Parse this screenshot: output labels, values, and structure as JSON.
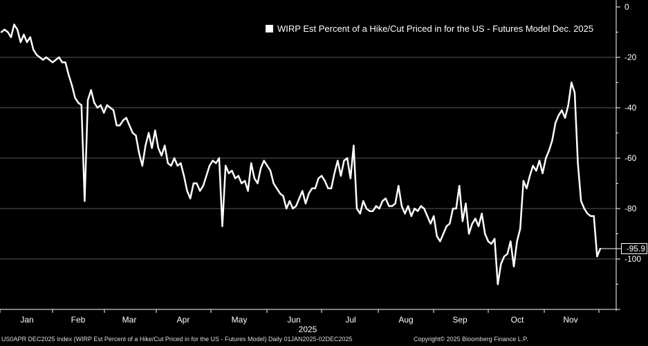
{
  "chart_data": {
    "type": "line",
    "title": "",
    "legend_position": "top-right",
    "xlabel": "2025",
    "ylabel": "",
    "ylim": [
      -120,
      0
    ],
    "y_ticks": [
      0,
      -20,
      -40,
      -60,
      -80,
      -100
    ],
    "grid": true,
    "months": [
      "Jan",
      "Feb",
      "Mar",
      "Apr",
      "May",
      "Jun",
      "Jul",
      "Aug",
      "Sep",
      "Oct",
      "Nov"
    ],
    "series": [
      {
        "name": "WIRP Est Percent of a Hike/Cut Priced in for the US - Futures Model Dec. 2025",
        "color": "#ffffff",
        "last_value_label": "-95.9",
        "points": [
          [
            0,
            -10
          ],
          [
            1,
            -9
          ],
          [
            2,
            -10
          ],
          [
            3,
            -12
          ],
          [
            4,
            -7
          ],
          [
            5,
            -9
          ],
          [
            6,
            -14
          ],
          [
            7,
            -11
          ],
          [
            8,
            -14
          ],
          [
            9,
            -12
          ],
          [
            10,
            -17
          ],
          [
            11,
            -19
          ],
          [
            12,
            -20
          ],
          [
            13,
            -21
          ],
          [
            14,
            -20
          ],
          [
            15,
            -21
          ],
          [
            16,
            -22
          ],
          [
            17,
            -21
          ],
          [
            18,
            -20
          ],
          [
            19,
            -22
          ],
          [
            20,
            -22
          ],
          [
            21,
            -27
          ],
          [
            22,
            -31
          ],
          [
            23,
            -36
          ],
          [
            24,
            -38
          ],
          [
            25,
            -39
          ],
          [
            26,
            -77
          ],
          [
            27,
            -37
          ],
          [
            28,
            -33
          ],
          [
            29,
            -38
          ],
          [
            30,
            -40
          ],
          [
            31,
            -39
          ],
          [
            32,
            -42
          ],
          [
            33,
            -39
          ],
          [
            34,
            -40
          ],
          [
            35,
            -41
          ],
          [
            36,
            -47
          ],
          [
            37,
            -47
          ],
          [
            38,
            -45
          ],
          [
            39,
            -44
          ],
          [
            40,
            -47
          ],
          [
            41,
            -50
          ],
          [
            42,
            -51
          ],
          [
            43,
            -58
          ],
          [
            44,
            -63
          ],
          [
            45,
            -55
          ],
          [
            46,
            -50
          ],
          [
            47,
            -56
          ],
          [
            48,
            -49
          ],
          [
            49,
            -56
          ],
          [
            50,
            -59
          ],
          [
            51,
            -55
          ],
          [
            52,
            -62
          ],
          [
            53,
            -63
          ],
          [
            54,
            -60
          ],
          [
            55,
            -63
          ],
          [
            56,
            -62
          ],
          [
            57,
            -67
          ],
          [
            58,
            -73
          ],
          [
            59,
            -76
          ],
          [
            60,
            -70
          ],
          [
            61,
            -70
          ],
          [
            62,
            -73
          ],
          [
            63,
            -71
          ],
          [
            64,
            -67
          ],
          [
            65,
            -63
          ],
          [
            66,
            -61
          ],
          [
            67,
            -62
          ],
          [
            68,
            -60
          ],
          [
            69,
            -87
          ],
          [
            70,
            -63
          ],
          [
            71,
            -66
          ],
          [
            72,
            -65
          ],
          [
            73,
            -68
          ],
          [
            74,
            -67
          ],
          [
            75,
            -70
          ],
          [
            76,
            -69
          ],
          [
            77,
            -73
          ],
          [
            78,
            -62
          ],
          [
            79,
            -68
          ],
          [
            80,
            -70
          ],
          [
            81,
            -64
          ],
          [
            82,
            -61
          ],
          [
            83,
            -63
          ],
          [
            84,
            -65
          ],
          [
            85,
            -70
          ],
          [
            86,
            -72
          ],
          [
            87,
            -74
          ],
          [
            88,
            -75
          ],
          [
            89,
            -80
          ],
          [
            90,
            -77
          ],
          [
            91,
            -80
          ],
          [
            92,
            -79
          ],
          [
            93,
            -76
          ],
          [
            94,
            -73
          ],
          [
            95,
            -78
          ],
          [
            96,
            -74
          ],
          [
            97,
            -72
          ],
          [
            98,
            -72
          ],
          [
            99,
            -68
          ],
          [
            100,
            -67
          ],
          [
            101,
            -69
          ],
          [
            102,
            -72
          ],
          [
            103,
            -72
          ],
          [
            104,
            -66
          ],
          [
            105,
            -61
          ],
          [
            106,
            -67
          ],
          [
            107,
            -61
          ],
          [
            108,
            -60
          ],
          [
            109,
            -68
          ],
          [
            110,
            -55
          ],
          [
            111,
            -80
          ],
          [
            112,
            -82
          ],
          [
            113,
            -77
          ],
          [
            114,
            -80
          ],
          [
            115,
            -81
          ],
          [
            116,
            -81
          ],
          [
            117,
            -79
          ],
          [
            118,
            -80
          ],
          [
            119,
            -77
          ],
          [
            120,
            -76
          ],
          [
            121,
            -79
          ],
          [
            122,
            -79
          ],
          [
            123,
            -78
          ],
          [
            124,
            -71
          ],
          [
            125,
            -79
          ],
          [
            126,
            -82
          ],
          [
            127,
            -79
          ],
          [
            128,
            -83
          ],
          [
            129,
            -80
          ],
          [
            130,
            -81
          ],
          [
            131,
            -79
          ],
          [
            132,
            -80
          ],
          [
            133,
            -83
          ],
          [
            134,
            -86
          ],
          [
            135,
            -83
          ],
          [
            136,
            -91
          ],
          [
            137,
            -93
          ],
          [
            138,
            -90
          ],
          [
            139,
            -87
          ],
          [
            140,
            -86
          ],
          [
            141,
            -80
          ],
          [
            142,
            -80
          ],
          [
            143,
            -71
          ],
          [
            144,
            -85
          ],
          [
            145,
            -78
          ],
          [
            146,
            -90
          ],
          [
            147,
            -86
          ],
          [
            148,
            -84
          ],
          [
            149,
            -87
          ],
          [
            150,
            -82
          ],
          [
            151,
            -90
          ],
          [
            152,
            -93
          ],
          [
            153,
            -94
          ],
          [
            154,
            -92
          ],
          [
            155,
            -110
          ],
          [
            156,
            -102
          ],
          [
            157,
            -99
          ],
          [
            158,
            -98
          ],
          [
            159,
            -93
          ],
          [
            160,
            -103
          ],
          [
            161,
            -93
          ],
          [
            162,
            -88
          ],
          [
            163,
            -69
          ],
          [
            164,
            -72
          ],
          [
            165,
            -67
          ],
          [
            166,
            -63
          ],
          [
            167,
            -65
          ],
          [
            168,
            -61
          ],
          [
            169,
            -66
          ],
          [
            170,
            -60
          ],
          [
            171,
            -57
          ],
          [
            172,
            -53
          ],
          [
            173,
            -46
          ],
          [
            174,
            -43
          ],
          [
            175,
            -41
          ],
          [
            176,
            -44
          ],
          [
            177,
            -39
          ],
          [
            178,
            -30
          ],
          [
            179,
            -34
          ],
          [
            180,
            -62
          ],
          [
            181,
            -77
          ],
          [
            182,
            -80
          ],
          [
            183,
            -82
          ],
          [
            184,
            -83
          ],
          [
            185,
            -83
          ],
          [
            186,
            -99
          ],
          [
            187,
            -95.9
          ]
        ]
      }
    ]
  },
  "footer": {
    "left": "US0APR DEC2025 Index (WIRP Est Percent of a Hike/Cut Priced in for the US - Futures Model) Daily 01JAN2025-02DEC2025",
    "right": "Copyright© 2025 Bloomberg Finance L.P."
  }
}
